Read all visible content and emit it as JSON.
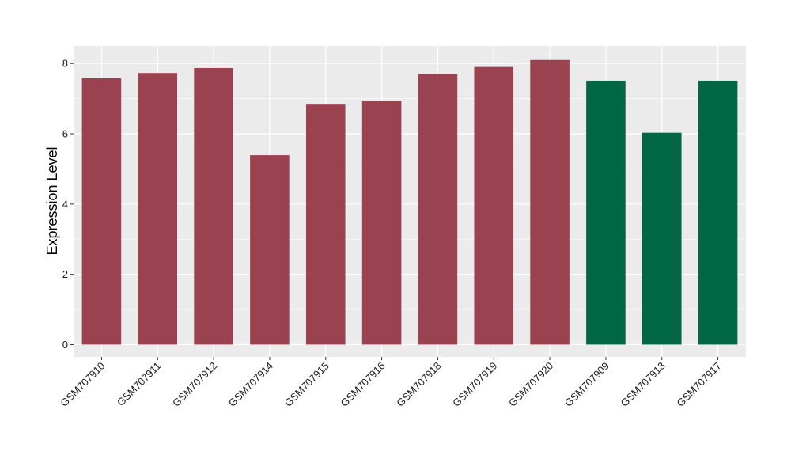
{
  "chart_data": {
    "type": "bar",
    "categories": [
      "GSM707910",
      "GSM707911",
      "GSM707912",
      "GSM707914",
      "GSM707915",
      "GSM707916",
      "GSM707918",
      "GSM707919",
      "GSM707920",
      "GSM707909",
      "GSM707913",
      "GSM707917"
    ],
    "values": [
      7.58,
      7.73,
      7.87,
      5.39,
      6.83,
      6.93,
      7.7,
      7.9,
      8.1,
      7.51,
      6.03,
      7.51
    ],
    "groups": [
      0,
      0,
      0,
      0,
      0,
      0,
      0,
      0,
      0,
      1,
      1,
      1
    ],
    "group_colors": [
      "#9b4250",
      "#006644"
    ],
    "title": "",
    "xlabel": "",
    "ylabel": "Expression Level",
    "ylim": [
      -0.35,
      8.5
    ],
    "yticks": [
      0,
      2,
      4,
      6,
      8
    ],
    "grid": true,
    "panel_background": "#ebebeb",
    "grid_color": "#ffffff"
  }
}
